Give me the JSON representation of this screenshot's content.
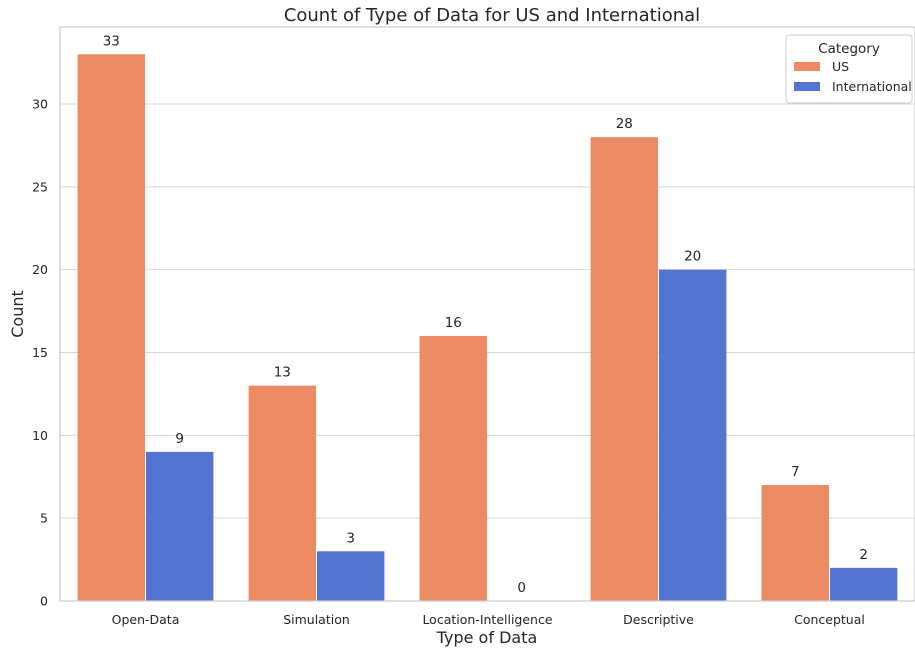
{
  "chart_data": {
    "type": "bar",
    "title": "Count of Type of Data for US and International",
    "xlabel": "Type of Data",
    "ylabel": "Count",
    "categories": [
      "Open-Data",
      "Simulation",
      "Location-Intelligence",
      "Descriptive",
      "Conceptual"
    ],
    "series": [
      {
        "name": "US",
        "color": "#EC8A63",
        "values": [
          33,
          13,
          16,
          28,
          7
        ]
      },
      {
        "name": "International",
        "color": "#5474D2",
        "values": [
          9,
          3,
          0,
          20,
          2
        ]
      }
    ],
    "ylim": [
      0,
      34.65
    ],
    "yticks": [
      0,
      5,
      10,
      15,
      20,
      25,
      30
    ],
    "grid": true,
    "legend": {
      "title": "Category",
      "placement": "top-right"
    }
  }
}
